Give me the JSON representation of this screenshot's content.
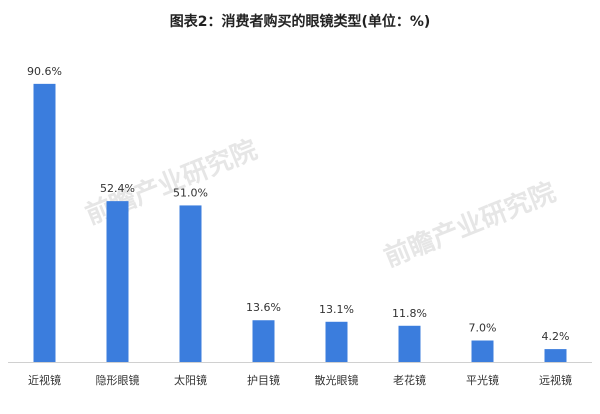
{
  "chart_data": {
    "type": "bar",
    "title": "图表2：消费者购买的眼镜类型(单位：%)",
    "categories": [
      "近视镜",
      "隐形眼镜",
      "太阳镜",
      "护目镜",
      "散光眼镜",
      "老花镜",
      "平光镜",
      "远视镜"
    ],
    "values": [
      90.6,
      52.4,
      51.0,
      13.6,
      13.1,
      11.8,
      7.0,
      4.2
    ],
    "value_labels": [
      "90.6%",
      "52.4%",
      "51.0%",
      "13.6%",
      "13.1%",
      "11.8%",
      "7.0%",
      "4.2%"
    ],
    "color": "#3b7ddd",
    "watermark": "前瞻产业研究院"
  }
}
